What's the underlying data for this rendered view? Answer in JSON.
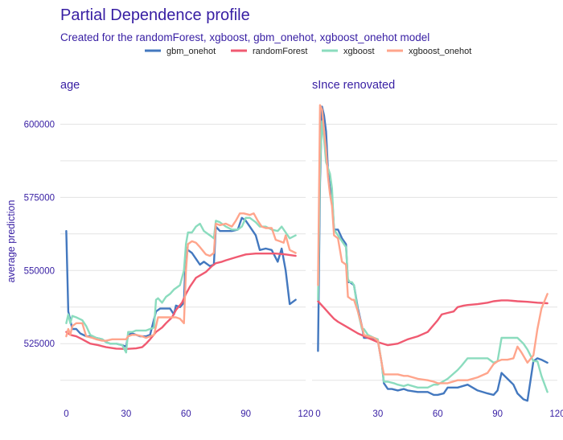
{
  "chart_data": {
    "type": "line",
    "title": "Partial Dependence profile",
    "subtitle": "Created for the randomForest, xgboost, gbm_onehot, xgboost_onehot model",
    "ylabel": "average prediction",
    "ylim": [
      505000,
      610000
    ],
    "yticks": [
      525000,
      550000,
      575000,
      600000
    ],
    "ytick_labels": [
      "525000",
      "550000",
      "575000",
      "600000"
    ],
    "grid": true,
    "legend": {
      "position": "top",
      "entries": [
        {
          "name": "gbm_onehot",
          "color": "#4378bf"
        },
        {
          "name": "randomForest",
          "color": "#f05a71"
        },
        {
          "name": "xgboost",
          "color": "#8bdcbe"
        },
        {
          "name": "xgboost_onehot",
          "color": "#ffa58c"
        }
      ]
    },
    "panels": [
      {
        "title": "age",
        "xlim": [
          -3,
          120
        ],
        "xticks": [
          0,
          30,
          60,
          90,
          120
        ],
        "xtick_labels": [
          "0",
          "30",
          "60",
          "90",
          "120"
        ],
        "series": [
          {
            "key": "gbm_onehot",
            "color": "#4378bf",
            "x": [
              0,
              1,
              2,
              3,
              5,
              7,
              10,
              12,
              15,
              18,
              20,
              22,
              25,
              28,
              30,
              31,
              33,
              35,
              37,
              40,
              42,
              45,
              47,
              50,
              52,
              54,
              55,
              57,
              59,
              60,
              61,
              63,
              65,
              67,
              69,
              72,
              74,
              75,
              77,
              80,
              83,
              86,
              88,
              90,
              92,
              95,
              97,
              100,
              103,
              106,
              108,
              110,
              112,
              115
            ],
            "y": [
              563500,
              536000,
              533000,
              530000,
              530000,
              528500,
              527500,
              527500,
              527000,
              526500,
              525500,
              525000,
              525000,
              524500,
              524000,
              528000,
              528500,
              528000,
              527500,
              527500,
              528000,
              536000,
              537000,
              537000,
              537000,
              535000,
              538000,
              537500,
              539000,
              558000,
              557000,
              556000,
              554000,
              552000,
              553000,
              551500,
              552000,
              565000,
              563500,
              563500,
              563500,
              564000,
              568000,
              567000,
              565000,
              562000,
              557000,
              557500,
              557000,
              553000,
              557500,
              550000,
              538500,
              540000
            ]
          },
          {
            "key": "randomForest",
            "color": "#f05a71",
            "x": [
              0,
              2,
              5,
              8,
              12,
              16,
              20,
              25,
              30,
              35,
              38,
              40,
              42,
              45,
              48,
              50,
              53,
              55,
              58,
              60,
              62,
              65,
              70,
              73,
              75,
              78,
              80,
              85,
              90,
              95,
              100,
              105,
              110,
              115
            ],
            "y": [
              529000,
              528000,
              527500,
              526500,
              525000,
              524500,
              523800,
              523300,
              523200,
              523400,
              523800,
              525000,
              526500,
              529000,
              530500,
              532000,
              534000,
              536500,
              539000,
              542000,
              544500,
              547500,
              549500,
              551500,
              552500,
              553000,
              553500,
              554500,
              555500,
              555800,
              555800,
              555800,
              555500,
              555000
            ]
          },
          {
            "key": "xgboost",
            "color": "#8bdcbe",
            "x": [
              0,
              1,
              2,
              3,
              5,
              8,
              10,
              12,
              15,
              18,
              20,
              22,
              25,
              28,
              30,
              31,
              33,
              35,
              38,
              40,
              42,
              44,
              45,
              46,
              48,
              50,
              52,
              54,
              55,
              57,
              59,
              60,
              61,
              63,
              65,
              67,
              69,
              72,
              74,
              75,
              77,
              80,
              83,
              86,
              88,
              90,
              92,
              95,
              97,
              100,
              103,
              106,
              108,
              110,
              112,
              115
            ],
            "y": [
              532000,
              535000,
              532000,
              534500,
              534000,
              533000,
              531000,
              528000,
              527000,
              526500,
              525500,
              525000,
              525000,
              524500,
              522000,
              529000,
              529000,
              529500,
              529500,
              529500,
              530000,
              530500,
              540000,
              540500,
              539000,
              541000,
              542000,
              543500,
              544000,
              545000,
              550000,
              559000,
              563000,
              563000,
              565000,
              566000,
              563500,
              562000,
              561000,
              567000,
              566500,
              565000,
              564000,
              564000,
              565000,
              568000,
              568000,
              566500,
              565000,
              565000,
              564000,
              563500,
              565000,
              563000,
              561000,
              562000
            ]
          },
          {
            "key": "xgboost_onehot",
            "color": "#ffa58c",
            "x": [
              0,
              1,
              2,
              3,
              5,
              8,
              10,
              13,
              15,
              18,
              20,
              23,
              25,
              28,
              30,
              31,
              33,
              35,
              38,
              40,
              42,
              44,
              45,
              46,
              48,
              50,
              52,
              55,
              57,
              59,
              60,
              61,
              63,
              65,
              67,
              70,
              72,
              74,
              75,
              77,
              80,
              83,
              85,
              87,
              89,
              92,
              94,
              96,
              98,
              100,
              103,
              105,
              107,
              109,
              110,
              112,
              115
            ],
            "y": [
              527500,
              530000,
              528000,
              531000,
              532000,
              532000,
              527500,
              527000,
              526500,
              526000,
              526000,
              526500,
              526500,
              526500,
              526500,
              527500,
              528000,
              528000,
              527500,
              527000,
              527500,
              528000,
              531000,
              534000,
              534000,
              534000,
              534000,
              534000,
              533500,
              532000,
              550000,
              559000,
              560000,
              559500,
              558000,
              555500,
              555000,
              556000,
              566000,
              565500,
              566000,
              565000,
              567000,
              569500,
              569500,
              569000,
              569500,
              567000,
              565000,
              564500,
              564500,
              560500,
              560000,
              559500,
              562000,
              557000,
              556000
            ]
          }
        ]
      },
      {
        "title": "sInce  renovated",
        "xlim": [
          -3,
          120
        ],
        "xticks": [
          0,
          30,
          60,
          90,
          120
        ],
        "xtick_labels": [
          "0",
          "30",
          "60",
          "90",
          "120"
        ],
        "series": [
          {
            "key": "gbm_onehot",
            "color": "#4378bf",
            "x": [
              0,
              1,
              2,
              3,
              4,
              5,
              6,
              7,
              8,
              10,
              12,
              14,
              15,
              16,
              17,
              18,
              20,
              22,
              23,
              25,
              27,
              30,
              32,
              33,
              35,
              37,
              40,
              43,
              45,
              50,
              55,
              58,
              60,
              63,
              65,
              70,
              75,
              80,
              85,
              88,
              90,
              92,
              95,
              98,
              100,
              103,
              105,
              108,
              110,
              112,
              115
            ],
            "y": [
              522500,
              580000,
              606000,
              603000,
              597500,
              584000,
              578000,
              576000,
              564000,
              564000,
              561000,
              559000,
              546000,
              546000,
              545500,
              545000,
              537000,
              531000,
              527000,
              527000,
              527000,
              526000,
              518000,
              511500,
              509500,
              509500,
              509000,
              509500,
              509000,
              508500,
              508500,
              507500,
              507500,
              508000,
              510000,
              510000,
              511000,
              509000,
              508000,
              507500,
              509000,
              515000,
              513000,
              511000,
              508000,
              506000,
              505500,
              519000,
              520000,
              519500,
              518500
            ]
          },
          {
            "key": "randomForest",
            "color": "#f05a71",
            "x": [
              0,
              2,
              4,
              6,
              8,
              10,
              15,
              20,
              25,
              30,
              35,
              40,
              45,
              50,
              55,
              60,
              62,
              65,
              68,
              70,
              73,
              75,
              80,
              85,
              88,
              92,
              95,
              100,
              105,
              110,
              115
            ],
            "y": [
              539500,
              538000,
              536500,
              535000,
              533500,
              532500,
              530500,
              528500,
              527000,
              525500,
              524500,
              525000,
              526500,
              527500,
              529000,
              533000,
              535000,
              535500,
              536000,
              537500,
              538000,
              538200,
              538500,
              539000,
              539500,
              539800,
              539800,
              539500,
              539300,
              539000,
              538800
            ]
          },
          {
            "key": "xgboost",
            "color": "#8bdcbe",
            "x": [
              0,
              1,
              2,
              3,
              4,
              5,
              6,
              7,
              8,
              10,
              12,
              14,
              15,
              16,
              17,
              18,
              20,
              22,
              23,
              25,
              28,
              30,
              32,
              33,
              35,
              38,
              40,
              43,
              45,
              50,
              55,
              58,
              60,
              65,
              70,
              72,
              75,
              80,
              85,
              88,
              90,
              92,
              95,
              100,
              103,
              105,
              108,
              110,
              112,
              115
            ],
            "y": [
              540000,
              585000,
              601000,
              595000,
              587000,
              585000,
              583000,
              578000,
              564000,
              562000,
              560000,
              558000,
              547000,
              546000,
              546000,
              545000,
              536000,
              530000,
              530000,
              528000,
              527000,
              526500,
              518000,
              512000,
              512000,
              511500,
              511000,
              510500,
              511000,
              510000,
              510000,
              511000,
              511000,
              513000,
              516000,
              517500,
              520000,
              520000,
              520000,
              518500,
              519000,
              527000,
              527000,
              527000,
              525000,
              523000,
              519000,
              519000,
              514000,
              508500
            ]
          },
          {
            "key": "xgboost_onehot",
            "color": "#ffa58c",
            "x": [
              0,
              1,
              2,
              3,
              4,
              5,
              6,
              7,
              8,
              10,
              12,
              14,
              15,
              16,
              17,
              18,
              20,
              22,
              23,
              25,
              28,
              30,
              32,
              33,
              35,
              38,
              40,
              43,
              45,
              50,
              55,
              58,
              60,
              65,
              70,
              75,
              80,
              85,
              88,
              90,
              92,
              95,
              98,
              100,
              102,
              105,
              108,
              110,
              112,
              115
            ],
            "y": [
              545000,
              606500,
              605000,
              598000,
              591000,
              582000,
              576000,
              572000,
              562000,
              561000,
              553000,
              552000,
              541000,
              540500,
              540000,
              540000,
              536000,
              531000,
              528000,
              527500,
              527000,
              526000,
              518000,
              514500,
              514500,
              514500,
              514500,
              514000,
              514000,
              513000,
              512500,
              512000,
              511500,
              511500,
              512500,
              512500,
              513500,
              515000,
              518000,
              519000,
              519500,
              519500,
              520000,
              524000,
              522000,
              518500,
              521000,
              530000,
              537000,
              542000
            ]
          }
        ]
      }
    ]
  }
}
